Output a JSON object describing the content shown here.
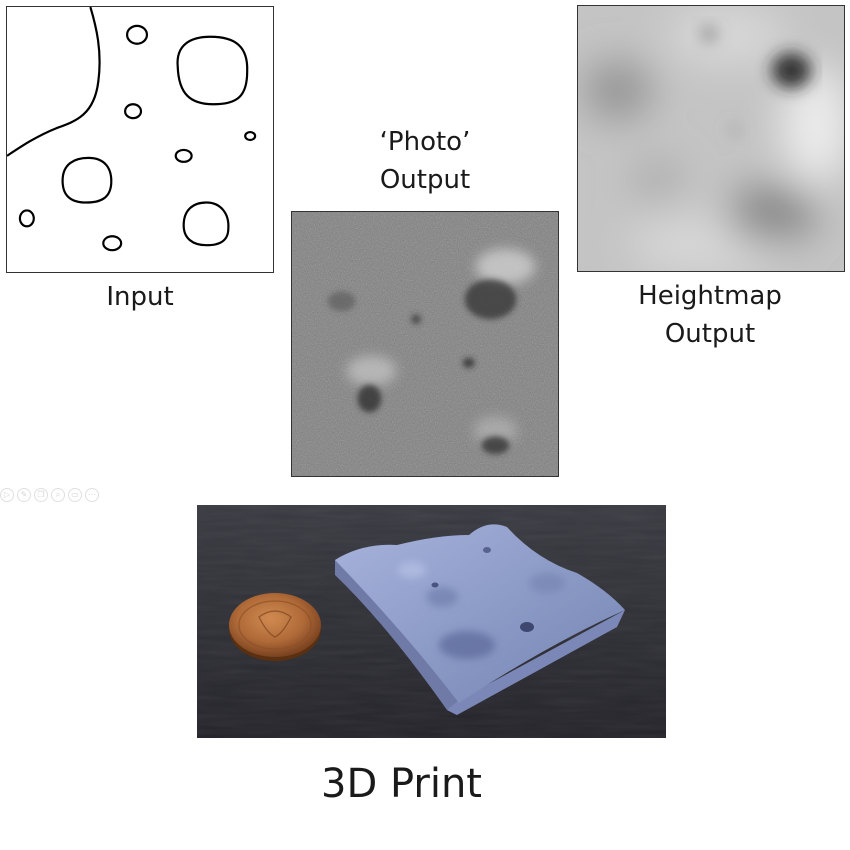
{
  "captions": {
    "input": "Input",
    "photo": [
      "‘Photo’",
      "Output"
    ],
    "heightmap": [
      "Heightmap",
      "Output"
    ],
    "print": "3D Print"
  },
  "slide_controls": [
    {
      "icon": "play-icon",
      "glyph": "▷"
    },
    {
      "icon": "pen-icon",
      "glyph": "✎"
    },
    {
      "icon": "copy-icon",
      "glyph": "❐"
    },
    {
      "icon": "zoom-icon",
      "glyph": "⌕"
    },
    {
      "icon": "screen-icon",
      "glyph": "▭"
    },
    {
      "icon": "more-icon",
      "glyph": "⋯"
    }
  ],
  "colors": {
    "outline": "#000000",
    "photo_base": "#7e7e7e",
    "heightmap_base": "#c4c4c4",
    "print_background": "#2f2f36",
    "print_model": "#8d9bc7",
    "coin": "#b06a38"
  }
}
